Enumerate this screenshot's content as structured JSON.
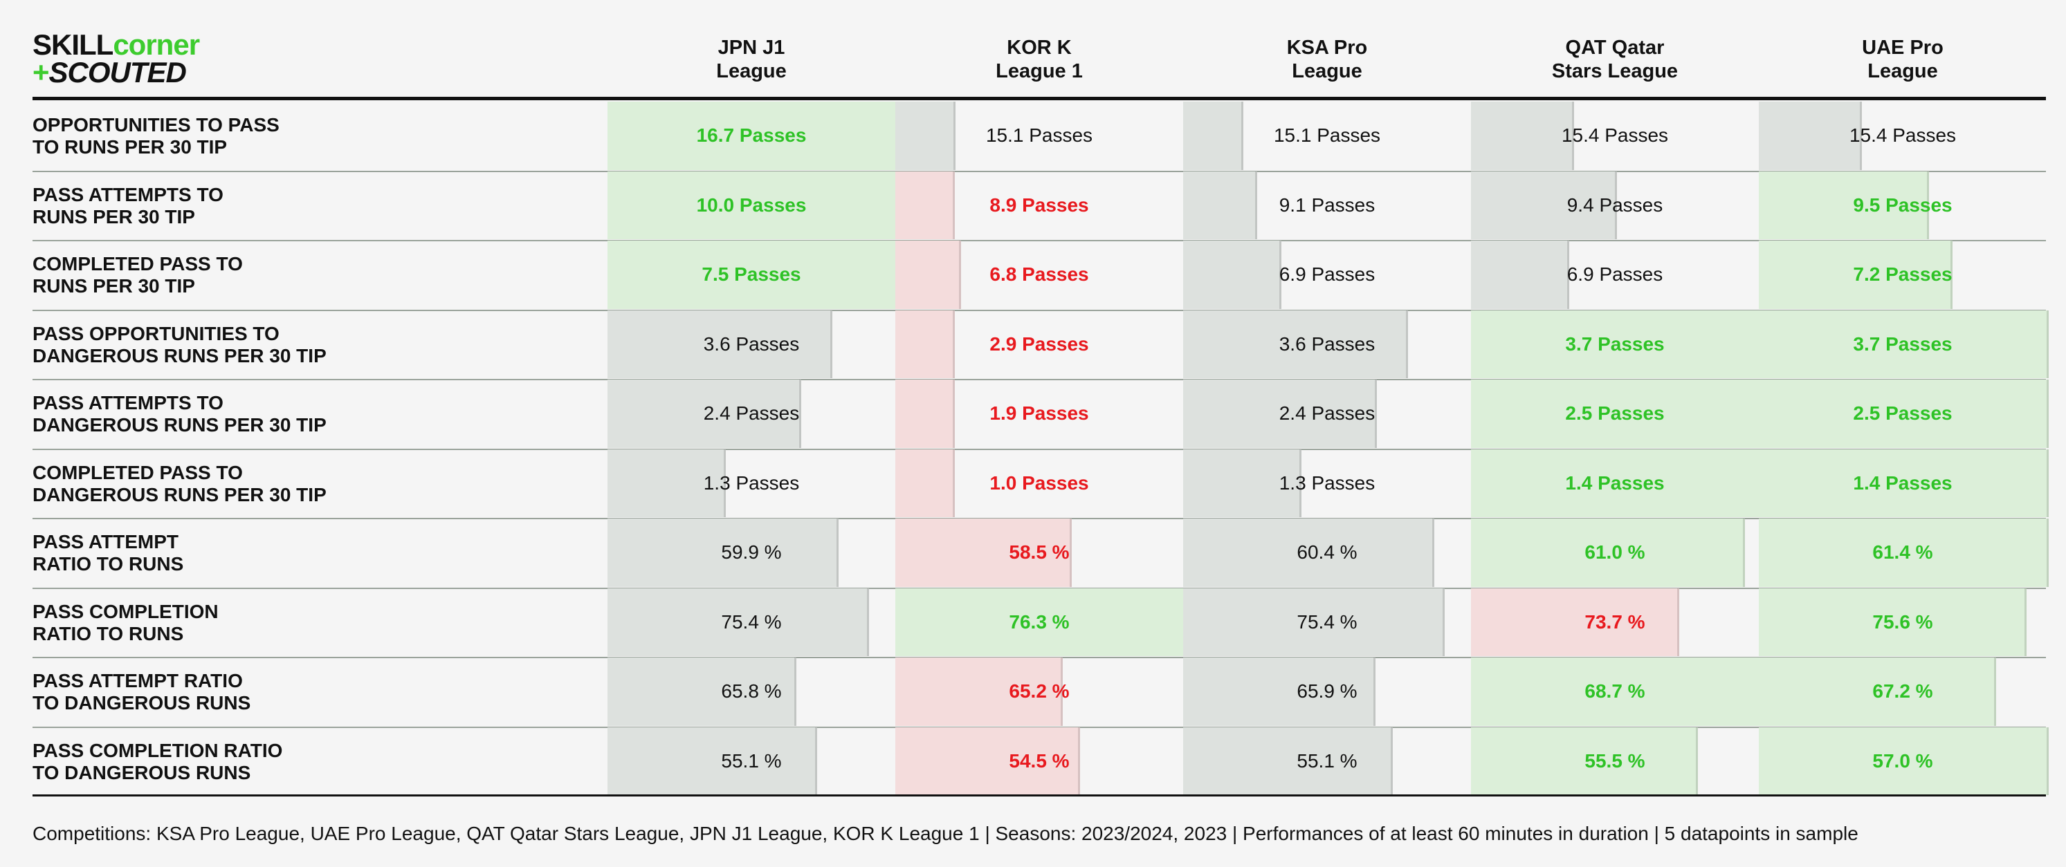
{
  "logo": {
    "line1_a": "SKILL",
    "line1_b": "corner",
    "line2_a": "+",
    "line2_b": "SCOUTED"
  },
  "chart_data": {
    "type": "table",
    "columns": [
      {
        "lines": [
          "JPN J1",
          "League"
        ]
      },
      {
        "lines": [
          "KOR K",
          "League 1"
        ]
      },
      {
        "lines": [
          "KSA Pro",
          "League"
        ]
      },
      {
        "lines": [
          "QAT Qatar",
          "Stars League"
        ]
      },
      {
        "lines": [
          "UAE Pro",
          "League"
        ]
      }
    ],
    "rows": [
      {
        "label": [
          "OPPORTUNITIES TO PASS",
          "TO RUNS PER 30 TIP"
        ],
        "values": [
          16.7,
          15.1,
          15.1,
          15.4,
          15.4
        ],
        "display": [
          "16.7 Passes",
          "15.1 Passes",
          "15.1 Passes",
          "15.4 Passes",
          "15.4 Passes"
        ],
        "status": [
          "high",
          "neutral",
          "neutral",
          "neutral",
          "neutral"
        ]
      },
      {
        "label": [
          "PASS ATTEMPTS TO",
          "RUNS PER 30 TIP"
        ],
        "values": [
          10.0,
          8.9,
          9.1,
          9.4,
          9.5
        ],
        "display": [
          "10.0 Passes",
          "8.9 Passes",
          "9.1 Passes",
          "9.4 Passes",
          "9.5 Passes"
        ],
        "status": [
          "high",
          "low",
          "neutral",
          "neutral",
          "high"
        ]
      },
      {
        "label": [
          "COMPLETED PASS TO",
          "RUNS PER 30 TIP"
        ],
        "values": [
          7.5,
          6.8,
          6.9,
          6.9,
          7.2
        ],
        "display": [
          "7.5 Passes",
          "6.8 Passes",
          "6.9 Passes",
          "6.9 Passes",
          "7.2 Passes"
        ],
        "status": [
          "high",
          "low",
          "neutral",
          "neutral",
          "high"
        ]
      },
      {
        "label": [
          "PASS OPPORTUNITIES TO",
          "DANGEROUS RUNS PER 30 TIP"
        ],
        "values": [
          3.6,
          2.9,
          3.6,
          3.7,
          3.7
        ],
        "display": [
          "3.6 Passes",
          "2.9 Passes",
          "3.6 Passes",
          "3.7 Passes",
          "3.7 Passes"
        ],
        "status": [
          "neutral",
          "low",
          "neutral",
          "high",
          "high"
        ]
      },
      {
        "label": [
          "PASS ATTEMPTS TO",
          "DANGEROUS RUNS PER 30 TIP"
        ],
        "values": [
          2.4,
          1.9,
          2.4,
          2.5,
          2.5
        ],
        "display": [
          "2.4 Passes",
          "1.9 Passes",
          "2.4 Passes",
          "2.5 Passes",
          "2.5 Passes"
        ],
        "status": [
          "neutral",
          "low",
          "neutral",
          "high",
          "high"
        ]
      },
      {
        "label": [
          "COMPLETED PASS TO",
          "DANGEROUS RUNS PER 30 TIP"
        ],
        "values": [
          1.3,
          1.0,
          1.3,
          1.4,
          1.4
        ],
        "display": [
          "1.3 Passes",
          "1.0 Passes",
          "1.3 Passes",
          "1.4 Passes",
          "1.4 Passes"
        ],
        "status": [
          "neutral",
          "low",
          "neutral",
          "high",
          "high"
        ]
      },
      {
        "label": [
          "PASS ATTEMPT",
          "RATIO TO RUNS"
        ],
        "values": [
          59.9,
          58.5,
          60.4,
          61.0,
          61.4
        ],
        "display": [
          "59.9 %",
          "58.5 %",
          "60.4 %",
          "61.0 %",
          "61.4 %"
        ],
        "status": [
          "neutral",
          "low",
          "neutral",
          "high",
          "high"
        ]
      },
      {
        "label": [
          "PASS COMPLETION",
          "RATIO TO RUNS"
        ],
        "values": [
          75.4,
          76.3,
          75.4,
          73.7,
          75.6
        ],
        "display": [
          "75.4 %",
          "76.3 %",
          "75.4 %",
          "73.7 %",
          "75.6 %"
        ],
        "status": [
          "neutral",
          "high",
          "neutral",
          "low",
          "high"
        ]
      },
      {
        "label": [
          "PASS ATTEMPT RATIO",
          "TO DANGEROUS RUNS"
        ],
        "values": [
          65.8,
          65.2,
          65.9,
          68.7,
          67.2
        ],
        "display": [
          "65.8 %",
          "65.2 %",
          "65.9 %",
          "68.7 %",
          "67.2 %"
        ],
        "status": [
          "neutral",
          "low",
          "neutral",
          "high",
          "high"
        ]
      },
      {
        "label": [
          "PASS COMPLETION RATIO",
          "TO DANGEROUS RUNS"
        ],
        "values": [
          55.1,
          54.5,
          55.1,
          55.5,
          57.0
        ],
        "display": [
          "55.1 %",
          "54.5 %",
          "55.1 %",
          "55.5 %",
          "57.0 %"
        ],
        "status": [
          "neutral",
          "low",
          "neutral",
          "high",
          "high"
        ]
      }
    ],
    "colors": {
      "high_text": "#2ec226",
      "low_text": "#e8191e",
      "neutral_text": "#111111",
      "high_bar": "#dcefd9",
      "low_bar": "#f4dcdc",
      "neutral_bar": "#dde1de"
    }
  },
  "footnote": "Competitions: KSA Pro League, UAE Pro League, QAT Qatar Stars League, JPN J1 League, KOR K League 1 | Seasons: 2023/2024, 2023 | Performances of at least 60 minutes in duration | 5 datapoints in sample"
}
